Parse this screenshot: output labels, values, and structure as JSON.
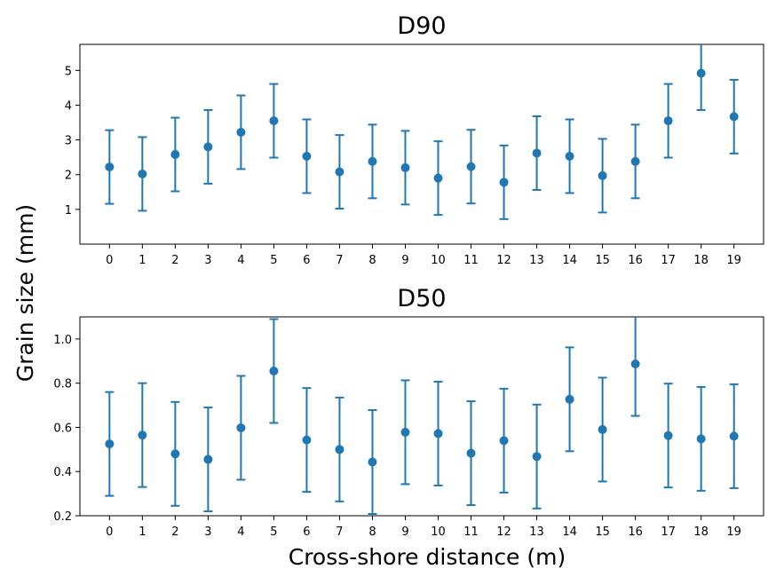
{
  "figure": {
    "ylabel": "Grain size (mm)",
    "xlabel": "Cross-shore distance (m)",
    "marker_color": "#1f77b4"
  },
  "chart_data": [
    {
      "type": "scatter",
      "title": "D90",
      "x": [
        0,
        1,
        2,
        3,
        4,
        5,
        6,
        7,
        8,
        9,
        10,
        11,
        12,
        13,
        14,
        15,
        16,
        17,
        18,
        19
      ],
      "y": [
        2.22,
        2.02,
        2.58,
        2.8,
        3.22,
        3.55,
        2.53,
        2.08,
        2.38,
        2.2,
        1.9,
        2.23,
        1.78,
        2.62,
        2.53,
        1.97,
        2.38,
        3.55,
        4.92,
        3.67
      ],
      "err": [
        1.06,
        1.06,
        1.06,
        1.06,
        1.06,
        1.06,
        1.06,
        1.06,
        1.06,
        1.06,
        1.06,
        1.06,
        1.06,
        1.06,
        1.06,
        1.06,
        1.06,
        1.06,
        1.06,
        1.06
      ],
      "xlim": [
        -0.9,
        19.9
      ],
      "ylim": [
        0,
        5.75
      ],
      "yticks": [
        1,
        2,
        3,
        4,
        5
      ],
      "xticks": [
        0,
        1,
        2,
        3,
        4,
        5,
        6,
        7,
        8,
        9,
        10,
        11,
        12,
        13,
        14,
        15,
        16,
        17,
        18,
        19
      ]
    },
    {
      "type": "scatter",
      "title": "D50",
      "x": [
        0,
        1,
        2,
        3,
        4,
        5,
        6,
        7,
        8,
        9,
        10,
        11,
        12,
        13,
        14,
        15,
        16,
        17,
        18,
        19
      ],
      "y": [
        0.525,
        0.565,
        0.48,
        0.455,
        0.598,
        0.855,
        0.543,
        0.5,
        0.443,
        0.578,
        0.572,
        0.483,
        0.54,
        0.468,
        0.727,
        0.59,
        0.887,
        0.563,
        0.548,
        0.56
      ],
      "err": [
        0.235,
        0.235,
        0.235,
        0.235,
        0.235,
        0.235,
        0.235,
        0.235,
        0.235,
        0.235,
        0.235,
        0.235,
        0.235,
        0.235,
        0.235,
        0.235,
        0.235,
        0.235,
        0.235,
        0.235
      ],
      "xlim": [
        -0.9,
        19.9
      ],
      "ylim": [
        0.2,
        1.1
      ],
      "yticks": [
        0.2,
        0.4,
        0.6,
        0.8,
        1.0
      ],
      "ytick_labels": [
        "0.2",
        "0.4",
        "0.6",
        "0.8",
        "1.0"
      ],
      "xticks": [
        0,
        1,
        2,
        3,
        4,
        5,
        6,
        7,
        8,
        9,
        10,
        11,
        12,
        13,
        14,
        15,
        16,
        17,
        18,
        19
      ]
    }
  ]
}
